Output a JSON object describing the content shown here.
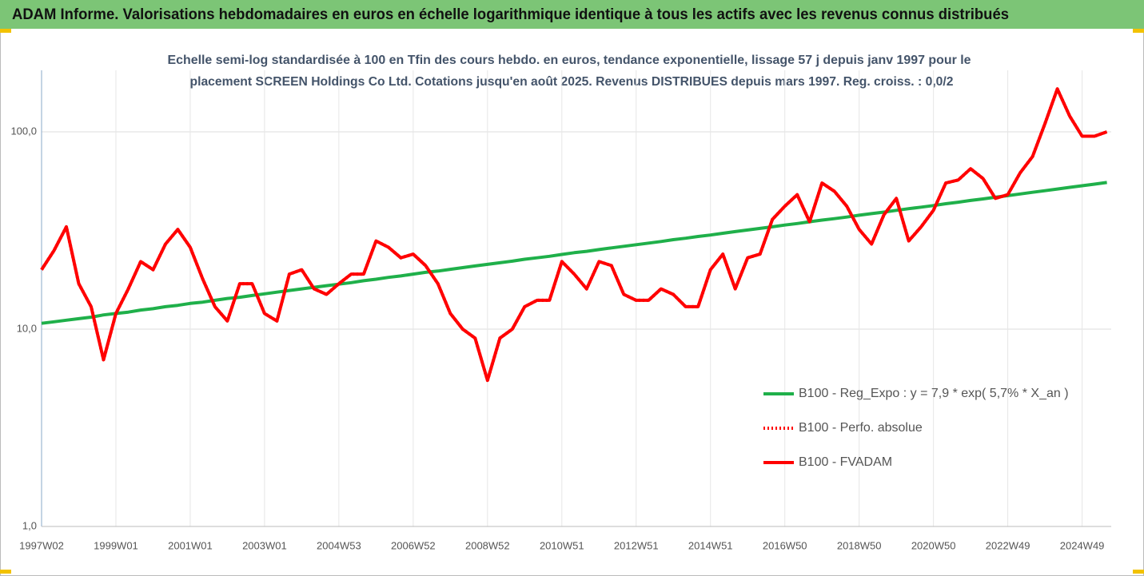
{
  "chart_data": {
    "type": "line",
    "header": "ADAM Informe. Valorisations hebdomadaires en euros en échelle logarithmique identique à tous les actifs avec les revenus connus distribués",
    "subtitle": [
      "Echelle semi-log standardisée à 100 en Tfin des cours hebdo. en euros, tendance exponentielle, lissage 57 j depuis janv 1997 pour le",
      "placement SCREEN Holdings Co Ltd. Cotations jusqu'en août 2025.  Revenus DISTRIBUES depuis mars 1997. Reg. croiss. : 0,0/2"
    ],
    "categories": [
      "1997W02",
      null,
      null,
      null,
      null,
      null,
      "1999W01",
      null,
      null,
      null,
      null,
      null,
      "2001W01",
      null,
      null,
      null,
      null,
      null,
      "2003W01",
      null,
      null,
      null,
      null,
      null,
      "2004W53",
      null,
      null,
      null,
      null,
      null,
      "2006W52",
      null,
      null,
      null,
      null,
      null,
      "2008W52",
      null,
      null,
      null,
      null,
      null,
      "2010W51",
      null,
      null,
      null,
      null,
      null,
      "2012W51",
      null,
      null,
      null,
      null,
      null,
      "2014W51",
      null,
      null,
      null,
      null,
      null,
      "2016W50",
      null,
      null,
      null,
      null,
      null,
      "2018W50",
      null,
      null,
      null,
      null,
      null,
      "2020W50",
      null,
      null,
      null,
      null,
      null,
      "2022W49",
      null,
      null,
      null,
      null,
      null,
      "2024W49",
      null,
      null
    ],
    "series": [
      {
        "name": "B100 - Reg_Expo : y = 7,9 * exp( 5,7% *  X_an )",
        "color": "#1fb04a",
        "dash": "solid",
        "values": [
          10.7,
          10.9,
          11.1,
          11.3,
          11.5,
          11.8,
          12.0,
          12.2,
          12.5,
          12.7,
          13.0,
          13.2,
          13.5,
          13.7,
          14.0,
          14.3,
          14.5,
          14.8,
          15.1,
          15.4,
          15.7,
          16.0,
          16.3,
          16.6,
          16.9,
          17.2,
          17.6,
          17.9,
          18.3,
          18.6,
          19.0,
          19.4,
          19.7,
          20.1,
          20.5,
          20.9,
          21.3,
          21.7,
          22.1,
          22.6,
          23.0,
          23.4,
          23.9,
          24.4,
          24.8,
          25.3,
          25.8,
          26.3,
          26.8,
          27.3,
          27.8,
          28.4,
          28.9,
          29.5,
          30.0,
          30.6,
          31.2,
          31.8,
          32.4,
          33.0,
          33.7,
          34.3,
          35.0,
          35.7,
          36.3,
          37.0,
          37.8,
          38.5,
          39.2,
          40.0,
          40.8,
          41.5,
          42.3,
          43.2,
          44.0,
          44.9,
          45.7,
          46.6,
          47.5,
          48.4,
          49.4,
          50.3,
          51.3,
          52.3,
          53.3,
          54.3,
          55.4
        ]
      },
      {
        "name": "B100 - Perfo. absolue",
        "color": "#ff0000",
        "dash": "dotted",
        "values": [
          20,
          25,
          33,
          17,
          13,
          7,
          12,
          16,
          22,
          20,
          27,
          32,
          26,
          18,
          13,
          11,
          17,
          17,
          12,
          11,
          19,
          20,
          16,
          15,
          17,
          19,
          19,
          28,
          26,
          23,
          24,
          21,
          17,
          12,
          10,
          9,
          5.5,
          9,
          10,
          13,
          14,
          14,
          22,
          19,
          16,
          22,
          21,
          15,
          14,
          14,
          16,
          15,
          13,
          13,
          20,
          24,
          16,
          23,
          24,
          36,
          42,
          48,
          35,
          55,
          50,
          42,
          32,
          27,
          38,
          46,
          28,
          33,
          40,
          55,
          57,
          65,
          58,
          46,
          48,
          62,
          75,
          110,
          165,
          120,
          95,
          95,
          100
        ]
      },
      {
        "name": "B100 - FVADAM",
        "color": "#ff0000",
        "dash": "solid",
        "values": [
          20,
          25,
          33,
          17,
          13,
          7,
          12,
          16,
          22,
          20,
          27,
          32,
          26,
          18,
          13,
          11,
          17,
          17,
          12,
          11,
          19,
          20,
          16,
          15,
          17,
          19,
          19,
          28,
          26,
          23,
          24,
          21,
          17,
          12,
          10,
          9,
          5.5,
          9,
          10,
          13,
          14,
          14,
          22,
          19,
          16,
          22,
          21,
          15,
          14,
          14,
          16,
          15,
          13,
          13,
          20,
          24,
          16,
          23,
          24,
          36,
          42,
          48,
          35,
          55,
          50,
          42,
          32,
          27,
          38,
          46,
          28,
          33,
          40,
          55,
          57,
          65,
          58,
          46,
          48,
          62,
          75,
          110,
          165,
          120,
          95,
          95,
          100
        ]
      }
    ],
    "log_scale": true,
    "ylim": [
      1,
      205
    ],
    "yticks": [
      {
        "value": 1,
        "label": "1,0"
      },
      {
        "value": 10,
        "label": "10,0"
      },
      {
        "value": 100,
        "label": "100,0"
      }
    ],
    "grid": true,
    "legend_position": "right"
  }
}
